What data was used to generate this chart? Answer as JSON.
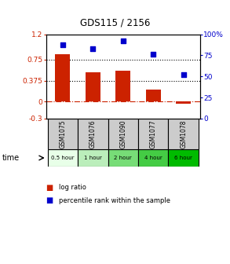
{
  "title": "GDS115 / 2156",
  "categories": [
    "GSM1075",
    "GSM1076",
    "GSM1090",
    "GSM1077",
    "GSM1078"
  ],
  "log_ratios": [
    0.85,
    0.52,
    0.55,
    0.22,
    -0.04
  ],
  "percentile_ranks": [
    88,
    83,
    92,
    76,
    52
  ],
  "time_labels": [
    "0.5 hour",
    "1 hour",
    "2 hour",
    "4 hour",
    "6 hour"
  ],
  "time_colors": [
    "#e8ffe8",
    "#bbeebb",
    "#77dd77",
    "#44cc44",
    "#00bb00"
  ],
  "bar_color": "#cc2200",
  "dot_color": "#0000cc",
  "ylim_left": [
    -0.3,
    1.2
  ],
  "ylim_right": [
    0,
    100
  ],
  "yticks_left": [
    -0.3,
    0,
    0.375,
    0.75,
    1.2
  ],
  "yticks_right": [
    0,
    25,
    50,
    75,
    100
  ],
  "ytick_labels_left": [
    "-0.3",
    "0",
    "0.375",
    "0.75",
    "1.2"
  ],
  "ytick_labels_right": [
    "0",
    "25",
    "50",
    "75",
    "100%"
  ],
  "hlines": [
    0.375,
    0.75
  ],
  "zero_line": 0,
  "bg_color": "#ffffff",
  "plot_bg": "#ffffff",
  "bar_width": 0.5,
  "legend_bar_label": "log ratio",
  "legend_dot_label": "percentile rank within the sample"
}
